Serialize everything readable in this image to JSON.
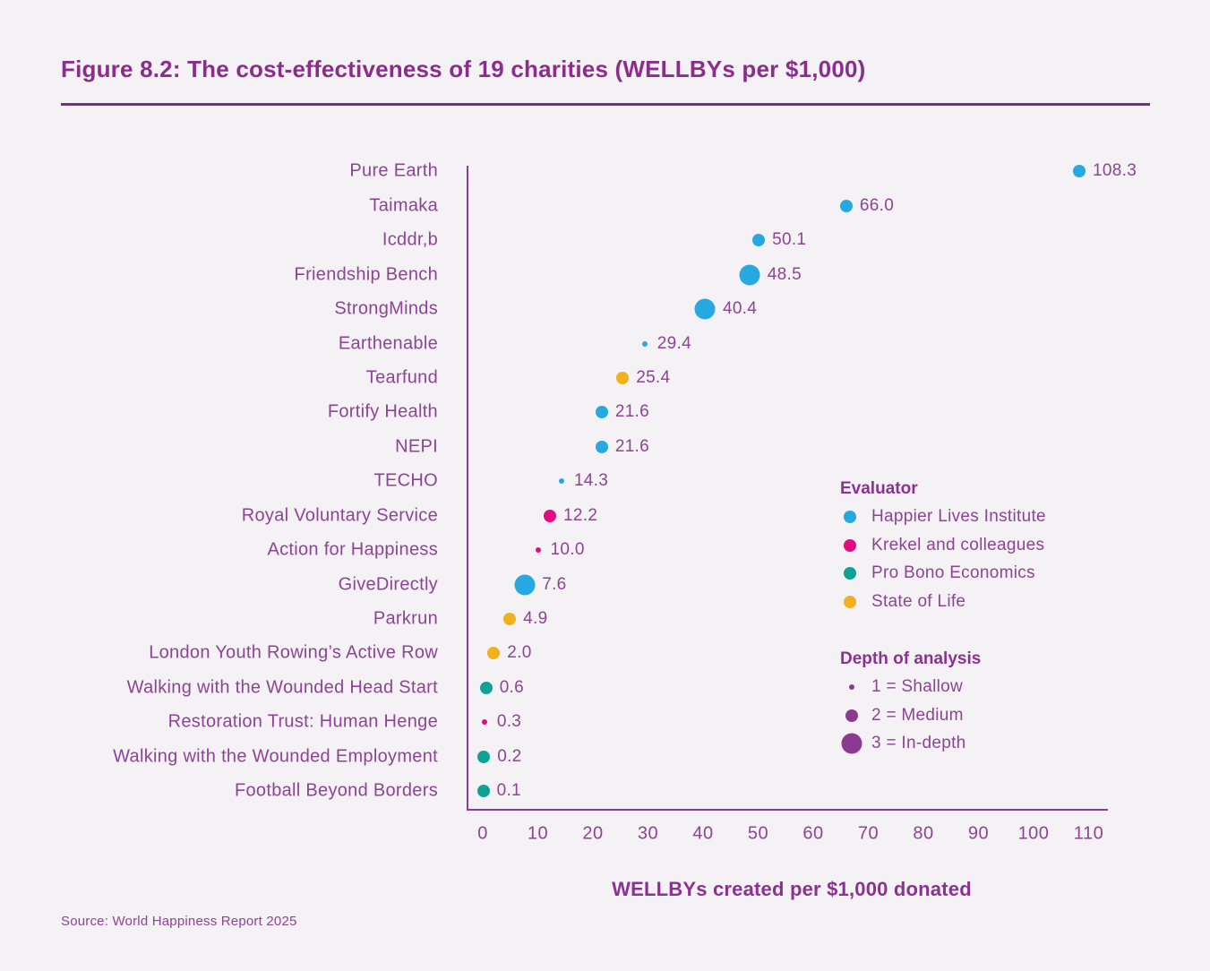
{
  "figure": {
    "title": "Figure 8.2: The cost-effectiveness of 19 charities (WELLBYs per $1,000)",
    "source": "Source: World Happiness Report 2025"
  },
  "colors": {
    "background": "#F4F2F4",
    "text_purple": "#8D4396",
    "title_purple": "#8C2D8E",
    "axis_purple": "#8A3F92",
    "depth_dot_purple": "#8B3A90"
  },
  "chart_data": {
    "type": "scatter",
    "title": "Figure 8.2: The cost-effectiveness of 19 charities (WELLBYs per $1,000)",
    "xlabel": "WELLBYs created per $1,000 donated",
    "ylabel": "",
    "xlim": [
      0,
      113
    ],
    "x_ticks": [
      0,
      10,
      20,
      30,
      40,
      50,
      60,
      70,
      80,
      90,
      100,
      110
    ],
    "grid": false,
    "legend_position": "right-inside",
    "points": [
      {
        "charity": "Pure Earth",
        "value": 108.3,
        "display": "108.3",
        "evaluator": "Happier Lives Institute",
        "depth": 2
      },
      {
        "charity": "Taimaka",
        "value": 66.0,
        "display": "66.0",
        "evaluator": "Happier Lives Institute",
        "depth": 2
      },
      {
        "charity": "Icddr,b",
        "value": 50.1,
        "display": "50.1",
        "evaluator": "Happier Lives Institute",
        "depth": 2
      },
      {
        "charity": "Friendship Bench",
        "value": 48.5,
        "display": "48.5",
        "evaluator": "Happier Lives Institute",
        "depth": 3
      },
      {
        "charity": "StrongMinds",
        "value": 40.4,
        "display": "40.4",
        "evaluator": "Happier Lives Institute",
        "depth": 3
      },
      {
        "charity": "Earthenable",
        "value": 29.4,
        "display": "29.4",
        "evaluator": "Happier Lives Institute",
        "depth": 1
      },
      {
        "charity": "Tearfund",
        "value": 25.4,
        "display": "25.4",
        "evaluator": "State of Life",
        "depth": 2
      },
      {
        "charity": "Fortify Health",
        "value": 21.6,
        "display": "21.6",
        "evaluator": "Happier Lives Institute",
        "depth": 2
      },
      {
        "charity": "NEPI",
        "value": 21.6,
        "display": "21.6",
        "evaluator": "Happier Lives Institute",
        "depth": 2
      },
      {
        "charity": "TECHO",
        "value": 14.3,
        "display": "14.3",
        "evaluator": "Happier Lives Institute",
        "depth": 1
      },
      {
        "charity": "Royal Voluntary Service",
        "value": 12.2,
        "display": "12.2",
        "evaluator": "Krekel and colleagues",
        "depth": 2
      },
      {
        "charity": "Action for Happiness",
        "value": 10.0,
        "display": "10.0",
        "evaluator": "Krekel and colleagues",
        "depth": 1
      },
      {
        "charity": "GiveDirectly",
        "value": 7.6,
        "display": "7.6",
        "evaluator": "Happier Lives Institute",
        "depth": 3
      },
      {
        "charity": "Parkrun",
        "value": 4.9,
        "display": "4.9",
        "evaluator": "State of Life",
        "depth": 2
      },
      {
        "charity": "London Youth Rowing’s Active Row",
        "value": 2.0,
        "display": "2.0",
        "evaluator": "State of Life",
        "depth": 2
      },
      {
        "charity": "Walking with the Wounded Head Start",
        "value": 0.6,
        "display": "0.6",
        "evaluator": "Pro Bono Economics",
        "depth": 2
      },
      {
        "charity": "Restoration Trust: Human Henge",
        "value": 0.3,
        "display": "0.3",
        "evaluator": "Krekel and colleagues",
        "depth": 1
      },
      {
        "charity": "Walking with the Wounded Employment",
        "value": 0.2,
        "display": "0.2",
        "evaluator": "Pro Bono Economics",
        "depth": 2
      },
      {
        "charity": "Football Beyond Borders",
        "value": 0.1,
        "display": "0.1",
        "evaluator": "Pro Bono Economics",
        "depth": 2
      }
    ],
    "evaluator_colors": {
      "Happier Lives Institute": "#25A9E0",
      "Krekel and colleagues": "#E30B80",
      "Pro Bono Economics": "#0DA294",
      "State of Life": "#F2B01E"
    }
  },
  "legend": {
    "evaluator_title": "Evaluator",
    "evaluators": [
      {
        "label": "Happier Lives Institute",
        "color": "#25A9E0"
      },
      {
        "label": "Krekel and colleagues",
        "color": "#E30B80"
      },
      {
        "label": "Pro Bono Economics",
        "color": "#0DA294"
      },
      {
        "label": "State of Life",
        "color": "#F2B01E"
      }
    ],
    "depth_title": "Depth of analysis",
    "depth_dot_color": "#8B3A90",
    "depth_items": [
      {
        "label": "1 = Shallow",
        "depth": 1
      },
      {
        "label": "2 = Medium",
        "depth": 2
      },
      {
        "label": "3 = In-depth",
        "depth": 3
      }
    ]
  }
}
